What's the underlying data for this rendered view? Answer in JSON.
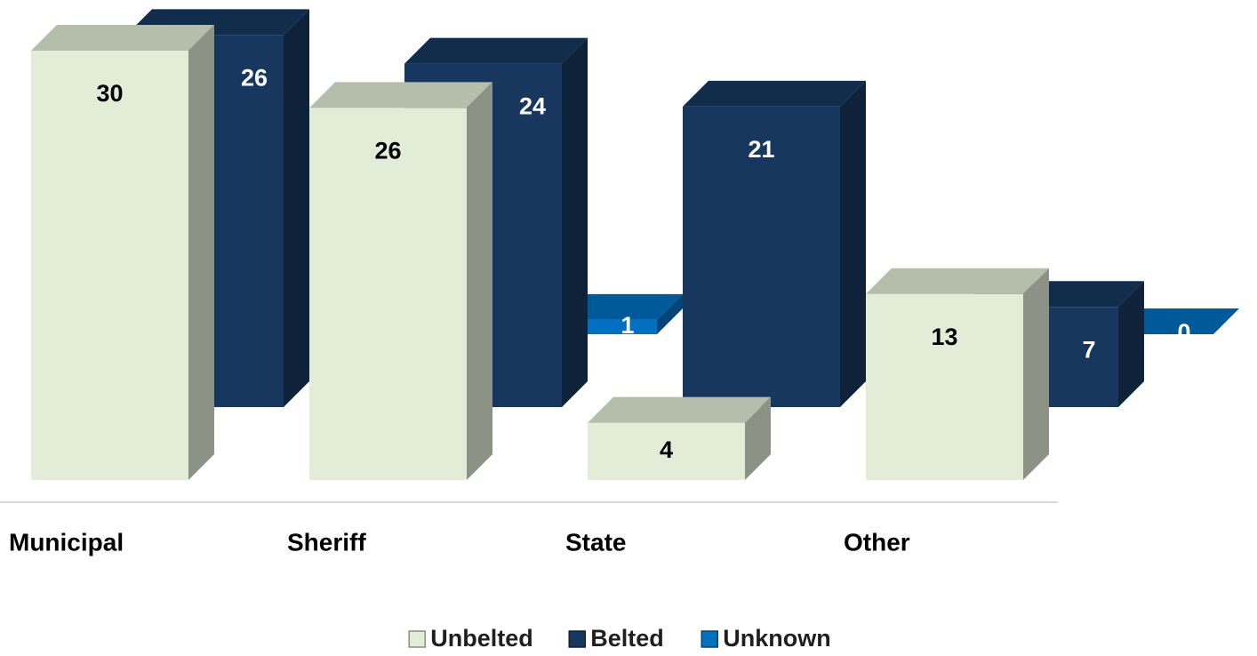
{
  "chart_data": {
    "type": "bar3d",
    "categories": [
      "Municipal",
      "Sheriff",
      "State",
      "Other"
    ],
    "series": [
      {
        "name": "Unbelted",
        "color": "#e2ecd6",
        "values": [
          30,
          26,
          4,
          13
        ]
      },
      {
        "name": "Belted",
        "color": "#17375e",
        "values": [
          26,
          24,
          21,
          7
        ]
      },
      {
        "name": "Unknown",
        "color": "#0070c0",
        "values": [
          null,
          1,
          null,
          0
        ]
      }
    ],
    "legend": "bottom"
  }
}
